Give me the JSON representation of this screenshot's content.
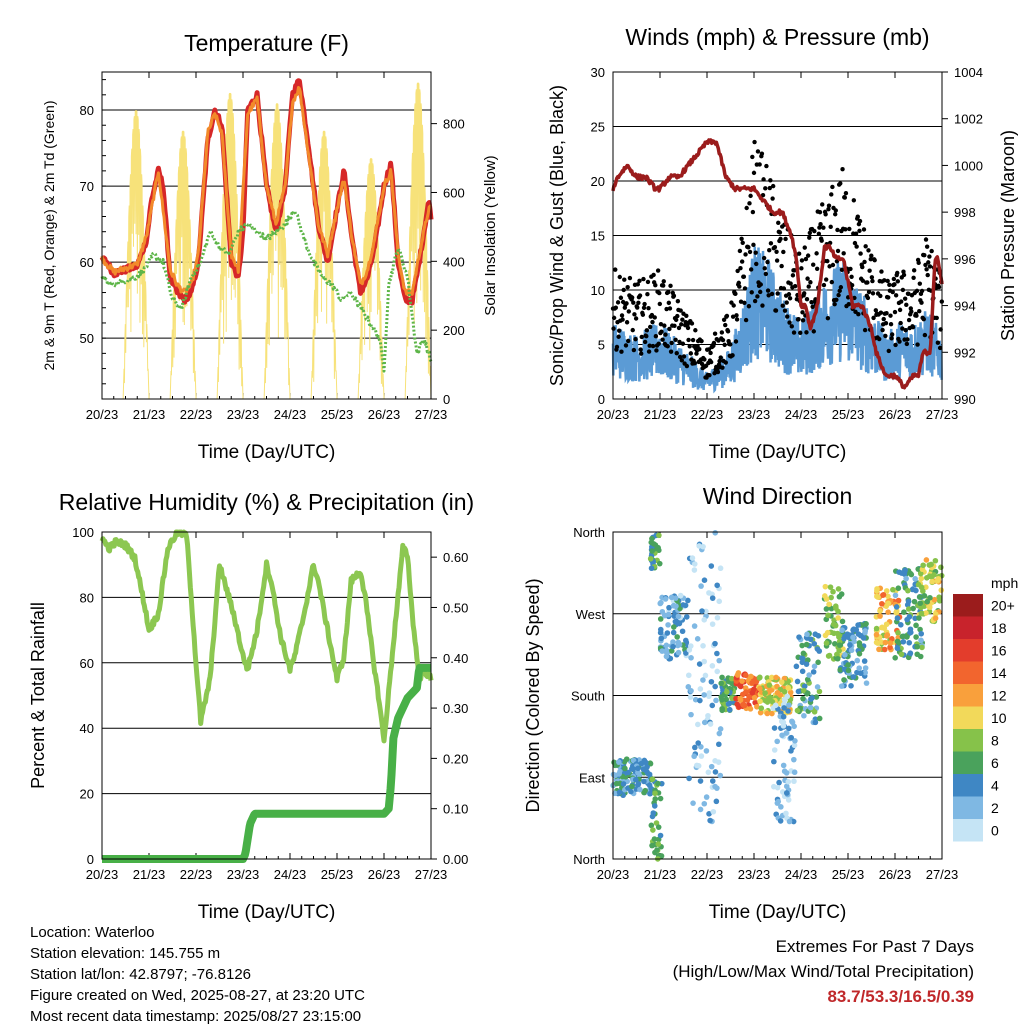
{
  "colors": {
    "temp_2m": "#d62728",
    "temp_9m": "#f28a2a",
    "dewpoint": "#5db548",
    "solar": "#f7e27a",
    "wind_sonic": "#5b9bd5",
    "gust": "#000000",
    "pressure": "#9b1c1c",
    "rh": "#8cc751",
    "precip": "#48b047"
  },
  "chart_data": [
    {
      "type": "line",
      "title": "Temperature (F)",
      "xlabel": "Time (Day/UTC)",
      "ylabel": "2m & 9m T (Red, Orange) & 2m Td (Green)",
      "y2label": "Solar Insolation (Yellow)",
      "x_ticks": [
        "20/23",
        "21/23",
        "22/23",
        "23/23",
        "24/23",
        "25/23",
        "26/23",
        "27/23"
      ],
      "xlim": [
        0,
        7
      ],
      "ylim": [
        42,
        85
      ],
      "y_ticks": [
        50,
        60,
        70,
        80
      ],
      "y2lim": [
        0,
        950
      ],
      "y2_ticks": [
        0,
        200,
        400,
        600,
        800
      ],
      "grid": true,
      "series": [
        {
          "name": "2m T",
          "color_key": "temp_2m",
          "x": [
            0,
            0.1,
            0.25,
            0.5,
            0.75,
            0.95,
            1.05,
            1.2,
            1.3,
            1.45,
            1.6,
            1.75,
            1.9,
            2.05,
            2.25,
            2.4,
            2.55,
            2.75,
            2.9,
            3.0,
            3.1,
            3.3,
            3.5,
            3.7,
            3.9,
            4.05,
            4.2,
            4.4,
            4.6,
            4.8,
            5.0,
            5.15,
            5.3,
            5.5,
            5.65,
            5.8,
            6.0,
            6.15,
            6.3,
            6.45,
            6.6,
            6.75,
            6.85,
            6.95,
            7.0
          ],
          "values": [
            60.5,
            60,
            58.5,
            59,
            59.5,
            63,
            68,
            72,
            70,
            58,
            56,
            55,
            56,
            60,
            76,
            80,
            78,
            60,
            58,
            64,
            80,
            82,
            70,
            64,
            70,
            82,
            84,
            75,
            65,
            60,
            67,
            72,
            64,
            56,
            58,
            62,
            70,
            73,
            60,
            55,
            55,
            60,
            64,
            68,
            66
          ]
        },
        {
          "name": "9m T",
          "color_key": "temp_9m",
          "x": [
            0,
            0.25,
            0.5,
            0.75,
            0.95,
            1.2,
            1.45,
            1.6,
            1.75,
            1.9,
            2.05,
            2.25,
            2.4,
            2.55,
            2.75,
            2.9,
            3.1,
            3.3,
            3.5,
            3.7,
            3.9,
            4.05,
            4.2,
            4.4,
            4.6,
            4.8,
            5.0,
            5.15,
            5.3,
            5.5,
            5.65,
            5.8,
            6.0,
            6.15,
            6.3,
            6.45,
            6.6,
            6.75,
            6.95
          ],
          "values": [
            60.5,
            58.7,
            59.2,
            59.7,
            63.5,
            72,
            59,
            57,
            56,
            57,
            61,
            77,
            79.5,
            77,
            61,
            59,
            79.5,
            81.5,
            70,
            65,
            70,
            81,
            83,
            74,
            65,
            61,
            67,
            71,
            64,
            57,
            59,
            63,
            70,
            72,
            61,
            56,
            56,
            61,
            67
          ]
        },
        {
          "name": "2m Td",
          "color_key": "dewpoint",
          "x": [
            0,
            0.2,
            0.45,
            0.7,
            0.9,
            1.1,
            1.3,
            1.5,
            1.7,
            1.9,
            2.1,
            2.3,
            2.5,
            2.7,
            2.9,
            3.1,
            3.3,
            3.5,
            3.7,
            3.9,
            4.1,
            4.3,
            4.5,
            4.7,
            4.9,
            5.1,
            5.3,
            5.5,
            5.7,
            5.9,
            6.0,
            6.1,
            6.3,
            6.5,
            6.7,
            6.85,
            7.0
          ],
          "values": [
            58,
            57,
            57.5,
            58,
            59,
            61,
            60,
            55,
            54,
            58,
            60,
            64,
            62,
            61,
            64,
            65,
            64,
            63,
            64,
            65,
            67,
            63,
            60,
            58,
            57,
            55,
            56,
            54,
            52,
            50,
            46,
            57,
            62,
            58,
            48,
            50,
            47
          ]
        }
      ],
      "solar_days": [
        {
          "day": 0,
          "peak": 840
        },
        {
          "day": 1,
          "peak": 780
        },
        {
          "day": 2,
          "peak": 890
        },
        {
          "day": 3,
          "peak": 860
        },
        {
          "day": 4,
          "peak": 780
        },
        {
          "day": 5,
          "peak": 700
        },
        {
          "day": 6,
          "peak": 920
        }
      ]
    },
    {
      "type": "scatter",
      "title": "Winds (mph) & Pressure (mb)",
      "xlabel": "Time (Day/UTC)",
      "ylabel": "Sonic/Prop Wind & Gust (Blue, Black)",
      "y2label": "Station Pressure (Maroon)",
      "x_ticks": [
        "20/23",
        "21/23",
        "22/23",
        "23/23",
        "24/23",
        "25/23",
        "26/23",
        "27/23"
      ],
      "xlim": [
        0,
        7
      ],
      "ylim": [
        0,
        30
      ],
      "y_ticks": [
        0,
        5,
        10,
        15,
        20,
        25,
        30
      ],
      "y2lim": [
        990,
        1004
      ],
      "y2_ticks": [
        990,
        992,
        994,
        996,
        998,
        1000,
        1002,
        1004
      ],
      "grid": true,
      "wind_envelope": {
        "x": [
          0,
          0.5,
          1.0,
          1.5,
          2.0,
          2.5,
          2.8,
          3.0,
          3.3,
          3.6,
          4.0,
          4.3,
          4.6,
          4.9,
          5.2,
          5.5,
          5.8,
          6.1,
          6.4,
          6.7,
          7.0
        ],
        "values": [
          6,
          5,
          6,
          4,
          2,
          4,
          8,
          12,
          11,
          8,
          6,
          8,
          10,
          11,
          9,
          7,
          5,
          6,
          6,
          7,
          5
        ]
      },
      "gust_envelope": {
        "x": [
          0,
          0.5,
          1.0,
          1.5,
          2.0,
          2.5,
          2.8,
          3.0,
          3.3,
          3.6,
          4.0,
          4.3,
          4.6,
          4.9,
          5.2,
          5.5,
          5.8,
          6.1,
          6.4,
          6.7,
          7.0
        ],
        "values": [
          10,
          9,
          10,
          7,
          4,
          7,
          14,
          20,
          18,
          14,
          11,
          14,
          16,
          18,
          15,
          12,
          9,
          10,
          10,
          13,
          9
        ]
      },
      "pressure": {
        "x": [
          0,
          0.1,
          0.3,
          0.5,
          0.7,
          0.9,
          1.0,
          1.2,
          1.4,
          1.6,
          1.8,
          2.0,
          2.2,
          2.4,
          2.6,
          2.8,
          3.0,
          3.2,
          3.4,
          3.6,
          3.8,
          3.9,
          4.0,
          4.1,
          4.2,
          4.35,
          4.5,
          4.6,
          4.75,
          4.9,
          5.0,
          5.1,
          5.3,
          5.5,
          5.6,
          5.8,
          6.0,
          6.2,
          6.4,
          6.5,
          6.6,
          6.75,
          6.85,
          6.9,
          7.0
        ],
        "values": [
          999,
          999.5,
          1000,
          999.5,
          999.5,
          999,
          999,
          999.5,
          999.5,
          1000,
          1000.5,
          1001,
          1001,
          999.5,
          999,
          999,
          999,
          998.5,
          998,
          998,
          997,
          996,
          994,
          994,
          993,
          994,
          996.5,
          996.5,
          996,
          996,
          995,
          994,
          994,
          993,
          992,
          991,
          991,
          990.5,
          991,
          991,
          992,
          992,
          996,
          996,
          995
        ]
      }
    },
    {
      "type": "line",
      "title": "Relative Humidity (%) & Precipitation (in)",
      "xlabel": "Time (Day/UTC)",
      "ylabel": "Percent & Total Rainfall",
      "x_ticks": [
        "20/23",
        "21/23",
        "22/23",
        "23/23",
        "24/23",
        "25/23",
        "26/23",
        "27/23"
      ],
      "xlim": [
        0,
        7
      ],
      "ylim": [
        0,
        100
      ],
      "y_ticks": [
        0,
        20,
        40,
        60,
        80,
        100
      ],
      "y2lim": [
        0,
        0.65
      ],
      "y2_ticks": [
        "0.00",
        "0.10",
        "0.20",
        "0.30",
        "0.40",
        "0.50",
        "0.60"
      ],
      "grid": true,
      "series": [
        {
          "name": "RH",
          "color_key": "rh",
          "x": [
            0,
            0.15,
            0.3,
            0.5,
            0.7,
            0.9,
            1.0,
            1.2,
            1.4,
            1.6,
            1.8,
            1.9,
            2.0,
            2.1,
            2.3,
            2.5,
            2.6,
            2.8,
            3.0,
            3.1,
            3.3,
            3.5,
            3.6,
            3.8,
            4.0,
            4.1,
            4.3,
            4.5,
            4.6,
            4.8,
            5.0,
            5.15,
            5.3,
            5.5,
            5.6,
            5.8,
            5.9,
            6.0,
            6.2,
            6.4,
            6.5,
            6.6,
            6.75,
            6.85,
            7.0
          ],
          "values": [
            98,
            95,
            97,
            96,
            92,
            78,
            70,
            75,
            95,
            100,
            99,
            80,
            60,
            42,
            55,
            90,
            85,
            75,
            62,
            58,
            70,
            90,
            85,
            68,
            58,
            62,
            75,
            90,
            85,
            70,
            55,
            62,
            85,
            88,
            80,
            58,
            48,
            36,
            66,
            95,
            93,
            75,
            55,
            58,
            55
          ]
        },
        {
          "name": "Precip",
          "color_key": "precip",
          "x": [
            0,
            1,
            2,
            3,
            3.05,
            3.1,
            3.15,
            3.2,
            3.25,
            4,
            5,
            6,
            6.1,
            6.15,
            6.2,
            6.3,
            6.4,
            6.5,
            6.6,
            6.7,
            6.75,
            7.0
          ],
          "values": [
            0,
            0,
            0,
            0,
            0.01,
            0.04,
            0.07,
            0.08,
            0.09,
            0.09,
            0.09,
            0.09,
            0.1,
            0.15,
            0.24,
            0.28,
            0.3,
            0.32,
            0.33,
            0.34,
            0.38,
            0.38
          ]
        }
      ]
    },
    {
      "type": "scatter",
      "title": "Wind Direction",
      "xlabel": "Time (Day/UTC)",
      "ylabel": "Direction (Colored By Speed)",
      "x_ticks": [
        "20/23",
        "21/23",
        "22/23",
        "23/23",
        "24/23",
        "25/23",
        "26/23",
        "27/23"
      ],
      "xlim": [
        0,
        7
      ],
      "ylim": [
        0,
        360
      ],
      "y_tick_labels": [
        "North",
        "East",
        "South",
        "West",
        "North"
      ],
      "grid": true,
      "colorbar": {
        "unit": "mph",
        "labels": [
          "20+",
          "18",
          "16",
          "14",
          "12",
          "10",
          "8",
          "6",
          "4",
          "2",
          "0"
        ],
        "colors": [
          "#9b1c1c",
          "#c8232c",
          "#e33d2c",
          "#f2652e",
          "#f9a03c",
          "#f2d95a",
          "#86c24a",
          "#4aa25c",
          "#3f87c4",
          "#7fb8e3",
          "#c5e4f5"
        ]
      },
      "clusters": [
        {
          "x": [
            0.0,
            0.8
          ],
          "dir": [
            70,
            110
          ],
          "speed": 4
        },
        {
          "x": [
            0.8,
            1.05
          ],
          "dir": [
            0,
            90
          ],
          "speed": 6
        },
        {
          "x": [
            0.8,
            1.0
          ],
          "dir": [
            320,
            360
          ],
          "speed": 6
        },
        {
          "x": [
            1.0,
            1.6
          ],
          "dir": [
            220,
            290
          ],
          "speed": 3
        },
        {
          "x": [
            1.6,
            2.3
          ],
          "dir": [
            40,
            360
          ],
          "speed": 2
        },
        {
          "x": [
            2.3,
            2.6
          ],
          "dir": [
            160,
            200
          ],
          "speed": 6
        },
        {
          "x": [
            2.6,
            3.1
          ],
          "dir": [
            165,
            205
          ],
          "speed": 14
        },
        {
          "x": [
            3.1,
            3.8
          ],
          "dir": [
            160,
            200
          ],
          "speed": 10
        },
        {
          "x": [
            3.4,
            3.9
          ],
          "dir": [
            40,
            180
          ],
          "speed": 2
        },
        {
          "x": [
            3.9,
            4.4
          ],
          "dir": [
            150,
            250
          ],
          "speed": 5
        },
        {
          "x": [
            4.5,
            4.9
          ],
          "dir": [
            220,
            300
          ],
          "speed": 8
        },
        {
          "x": [
            4.8,
            5.4
          ],
          "dir": [
            190,
            260
          ],
          "speed": 4
        },
        {
          "x": [
            5.6,
            6.1
          ],
          "dir": [
            230,
            300
          ],
          "speed": 11
        },
        {
          "x": [
            6.0,
            6.6
          ],
          "dir": [
            220,
            320
          ],
          "speed": 5
        },
        {
          "x": [
            6.5,
            7.0
          ],
          "dir": [
            260,
            330
          ],
          "speed": 9
        }
      ]
    }
  ],
  "info": {
    "location": "Location: Waterloo",
    "elevation": "Station elevation: 145.755 m",
    "latlon": "Station lat/lon: 42.8797; -76.8126",
    "created": "Figure created on Wed, 2025-08-27, at 23:20 UTC",
    "recent": "Most recent data timestamp: 2025/08/27 23:15:00"
  },
  "extremes": {
    "heading": "Extremes For Past 7 Days",
    "subheading": "(High/Low/Max Wind/Total Precipitation)",
    "values": "83.7/53.3/16.5/0.39"
  }
}
